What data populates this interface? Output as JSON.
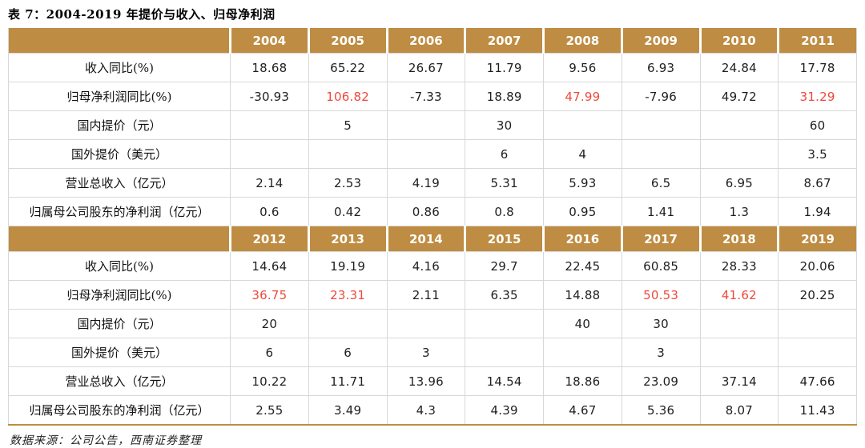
{
  "title": "表 7：2004-2019 年提价与收入、归母净利润",
  "footer": "数据来源：公司公告，西南证券整理",
  "colors": {
    "header_bg": "#BE8C42",
    "highlight_red": "#F0483A",
    "cell_border": "#D8D8D8"
  },
  "chart_data": {
    "type": "table",
    "title": "表 7：2004-2019 年提价与收入、归母净利润",
    "row_labels": [
      "收入同比(%)",
      "归母净利润同比(%)",
      "国内提价（元）",
      "国外提价（美元）",
      "营业总收入（亿元）",
      "归属母公司股东的净利润（亿元）"
    ],
    "sections": [
      {
        "years": [
          "2004",
          "2005",
          "2006",
          "2007",
          "2008",
          "2009",
          "2010",
          "2011"
        ],
        "rows": [
          {
            "label": "收入同比(%)",
            "values": [
              "18.68",
              "65.22",
              "26.67",
              "11.79",
              "9.56",
              "6.93",
              "24.84",
              "17.78"
            ],
            "red_indices": []
          },
          {
            "label": "归母净利润同比(%)",
            "values": [
              "-30.93",
              "106.82",
              "-7.33",
              "18.89",
              "47.99",
              "-7.96",
              "49.72",
              "31.29"
            ],
            "red_indices": [
              1,
              4,
              7
            ]
          },
          {
            "label": "国内提价（元）",
            "values": [
              "",
              "5",
              "",
              "30",
              "",
              "",
              "",
              "60"
            ],
            "red_indices": []
          },
          {
            "label": "国外提价（美元）",
            "values": [
              "",
              "",
              "",
              "6",
              "4",
              "",
              "",
              "3.5"
            ],
            "red_indices": []
          },
          {
            "label": "营业总收入（亿元）",
            "values": [
              "2.14",
              "2.53",
              "4.19",
              "5.31",
              "5.93",
              "6.5",
              "6.95",
              "8.67"
            ],
            "red_indices": []
          },
          {
            "label": "归属母公司股东的净利润（亿元）",
            "values": [
              "0.6",
              "0.42",
              "0.86",
              "0.8",
              "0.95",
              "1.41",
              "1.3",
              "1.94"
            ],
            "red_indices": []
          }
        ]
      },
      {
        "years": [
          "2012",
          "2013",
          "2014",
          "2015",
          "2016",
          "2017",
          "2018",
          "2019"
        ],
        "rows": [
          {
            "label": "收入同比(%)",
            "values": [
              "14.64",
              "19.19",
              "4.16",
              "29.7",
              "22.45",
              "60.85",
              "28.33",
              "20.06"
            ],
            "red_indices": []
          },
          {
            "label": "归母净利润同比(%)",
            "values": [
              "36.75",
              "23.31",
              "2.11",
              "6.35",
              "14.88",
              "50.53",
              "41.62",
              "20.25"
            ],
            "red_indices": [
              0,
              1,
              5,
              6
            ]
          },
          {
            "label": "国内提价（元）",
            "values": [
              "20",
              "",
              "",
              "",
              "40",
              "30",
              "",
              ""
            ],
            "red_indices": []
          },
          {
            "label": "国外提价（美元）",
            "values": [
              "6",
              "6",
              "3",
              "",
              "",
              "3",
              "",
              ""
            ],
            "red_indices": []
          },
          {
            "label": "营业总收入（亿元）",
            "values": [
              "10.22",
              "11.71",
              "13.96",
              "14.54",
              "18.86",
              "23.09",
              "37.14",
              "47.66"
            ],
            "red_indices": []
          },
          {
            "label": "归属母公司股东的净利润（亿元）",
            "values": [
              "2.55",
              "3.49",
              "4.3",
              "4.39",
              "4.67",
              "5.36",
              "8.07",
              "11.43"
            ],
            "red_indices": []
          }
        ]
      }
    ]
  }
}
